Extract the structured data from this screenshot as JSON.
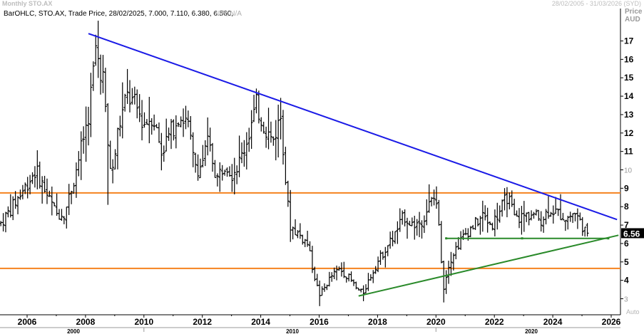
{
  "window": {
    "title": "Monthly STO.AX",
    "date_range": "28/02/2005 - 31/03/2026 (SYD)"
  },
  "legend": {
    "text": "BarOHLC, STO.AX, Trade Price, 28/02/2025, 7.000, 7.110, 6.380, 6.560,",
    "na_text": "N/A, N/A"
  },
  "axis": {
    "price_label": "Price",
    "currency_label": "AUD",
    "auto_label": "Auto",
    "last_price_tag": "6.56",
    "last_price_tag_color": "#000000"
  },
  "chart_data": {
    "type": "bar",
    "style": "OHLC monthly bars",
    "instrument": "STO.AX",
    "frequency": "Monthly",
    "ylim": [
      2.4,
      18.3
    ],
    "y_ticks": [
      3,
      4,
      5,
      6,
      7,
      8,
      9,
      10,
      11,
      12,
      13,
      14,
      15,
      16,
      17
    ],
    "y_tick_labels": [
      "3",
      "4",
      "5",
      "6",
      "7",
      "8",
      "9",
      "10",
      "11",
      "12",
      "13",
      "14",
      "15",
      "16",
      "17"
    ],
    "minor_y_ticks": [
      10,
      3
    ],
    "xlim": [
      2005.1,
      2026.25
    ],
    "x_ticks": [
      2006,
      2008,
      2010,
      2012,
      2014,
      2016,
      2018,
      2020,
      2022,
      2024,
      2026
    ],
    "x_tick_labels": [
      "2006",
      "2008",
      "2010",
      "2012",
      "2014",
      "2016",
      "2018",
      "2020",
      "2022",
      "2024",
      "2026"
    ],
    "decade_ticks": [
      2000,
      2010,
      2020
    ],
    "decade_labels": [
      "2000",
      "2010",
      "2020"
    ],
    "grid": false,
    "bar_color": "#000000",
    "last_bar": {
      "date": "28/02/2025",
      "open": 7.0,
      "high": 7.11,
      "low": 6.38,
      "close": 6.56
    },
    "anchors": [
      [
        2005.1,
        7.1
      ],
      [
        2005.5,
        8.0
      ],
      [
        2005.9,
        9.0
      ],
      [
        2006.3,
        10.0
      ],
      [
        2006.7,
        8.6
      ],
      [
        2007.0,
        7.6
      ],
      [
        2007.3,
        7.7
      ],
      [
        2007.6,
        9.5
      ],
      [
        2007.9,
        11.5
      ],
      [
        2008.1,
        13.0
      ],
      [
        2008.35,
        16.5
      ],
      [
        2008.6,
        15.0
      ],
      [
        2008.75,
        11.5
      ],
      [
        2008.9,
        9.5
      ],
      [
        2009.1,
        12.0
      ],
      [
        2009.4,
        14.0
      ],
      [
        2009.7,
        13.5
      ],
      [
        2010.0,
        12.5
      ],
      [
        2010.3,
        13.0
      ],
      [
        2010.6,
        11.0
      ],
      [
        2010.9,
        12.0
      ],
      [
        2011.2,
        13.0
      ],
      [
        2011.5,
        12.5
      ],
      [
        2011.7,
        10.5
      ],
      [
        2011.9,
        10.0
      ],
      [
        2012.2,
        11.5
      ],
      [
        2012.5,
        9.5
      ],
      [
        2012.8,
        10.5
      ],
      [
        2013.0,
        9.8
      ],
      [
        2013.3,
        10.5
      ],
      [
        2013.6,
        12.0
      ],
      [
        2013.85,
        13.5
      ],
      [
        2014.1,
        12.5
      ],
      [
        2014.4,
        11.5
      ],
      [
        2014.7,
        13.0
      ],
      [
        2014.8,
        10.5
      ],
      [
        2014.9,
        8.5
      ],
      [
        2015.0,
        7.0
      ],
      [
        2015.3,
        6.5
      ],
      [
        2015.6,
        6.0
      ],
      [
        2015.8,
        4.5
      ],
      [
        2016.0,
        3.2
      ],
      [
        2016.15,
        3.5
      ],
      [
        2016.4,
        4.2
      ],
      [
        2016.7,
        4.6
      ],
      [
        2017.0,
        4.2
      ],
      [
        2017.3,
        3.5
      ],
      [
        2017.5,
        3.3
      ],
      [
        2017.75,
        4.2
      ],
      [
        2018.0,
        5.0
      ],
      [
        2018.3,
        5.8
      ],
      [
        2018.6,
        6.5
      ],
      [
        2018.9,
        7.5
      ],
      [
        2019.2,
        7.0
      ],
      [
        2019.5,
        7.2
      ],
      [
        2019.8,
        8.2
      ],
      [
        2020.0,
        8.5
      ],
      [
        2020.15,
        6.0
      ],
      [
        2020.25,
        3.5
      ],
      [
        2020.45,
        5.0
      ],
      [
        2020.7,
        5.8
      ],
      [
        2021.0,
        6.5
      ],
      [
        2021.3,
        7.0
      ],
      [
        2021.6,
        7.5
      ],
      [
        2021.9,
        7.0
      ],
      [
        2022.2,
        7.8
      ],
      [
        2022.45,
        8.6
      ],
      [
        2022.7,
        7.3
      ],
      [
        2023.0,
        7.5
      ],
      [
        2023.3,
        7.6
      ],
      [
        2023.6,
        7.3
      ],
      [
        2023.9,
        7.9
      ],
      [
        2024.2,
        7.6
      ],
      [
        2024.5,
        7.4
      ],
      [
        2024.75,
        7.7
      ],
      [
        2025.0,
        7.0
      ],
      [
        2025.15,
        6.56
      ]
    ],
    "trendlines": [
      {
        "color": "#1a1ae6",
        "from": [
          2008.1,
          17.4
        ],
        "to": [
          2026.2,
          7.3
        ]
      },
      {
        "color": "#2a8a2a",
        "from": [
          2017.35,
          3.15
        ],
        "to": [
          2026.25,
          6.45
        ]
      },
      {
        "color": "#2a8a2a",
        "from": [
          2020.35,
          6.28
        ],
        "to": [
          2025.9,
          6.28
        ]
      }
    ],
    "horizontal_levels": [
      {
        "color": "#f5821f",
        "value": 8.75
      },
      {
        "color": "#f5821f",
        "value": 4.65
      }
    ]
  }
}
